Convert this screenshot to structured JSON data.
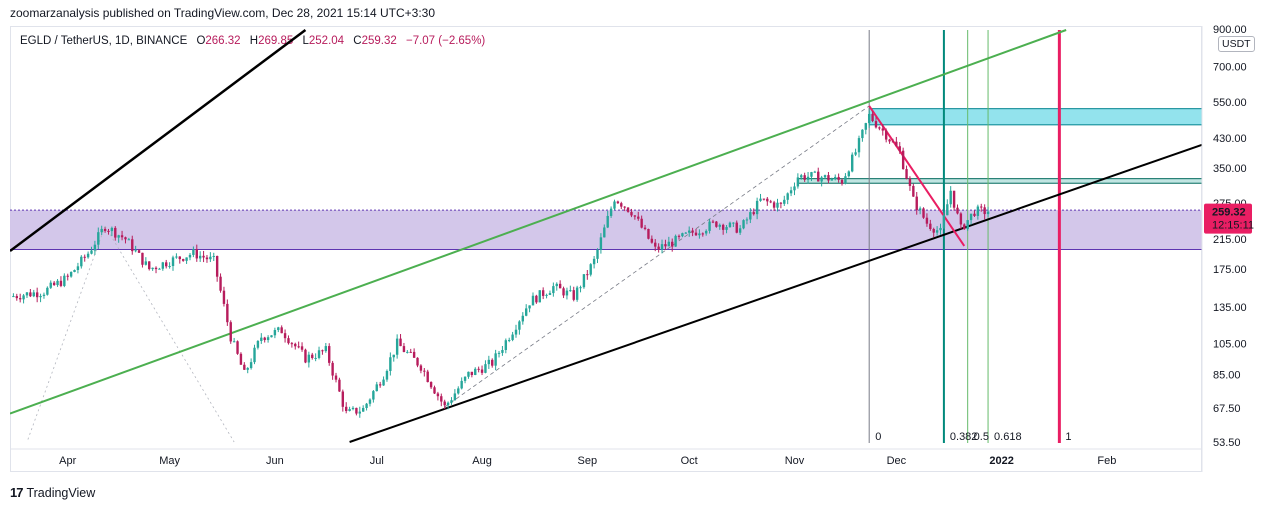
{
  "publish_line": "zoomarzanalysis published on TradingView.com, Dec 28, 2021 15:14 UTC+3:30",
  "legend": {
    "symbol": "EGLD / TetherUS, 1D, BINANCE",
    "open_label": "O",
    "open": "266.32",
    "high_label": "H",
    "high": "269.85",
    "low_label": "L",
    "low": "252.04",
    "close_label": "C",
    "close": "259.32",
    "change": "−7.07 (−2.65%)"
  },
  "currency_badge": "USDT",
  "price_tag": {
    "price": "259.32",
    "countdown": "12:15:11",
    "color": "#e91e63"
  },
  "footer_logo": "TradingView",
  "footer_logo_mark": "17",
  "colors": {
    "up": "#26a69a",
    "down": "#b71c5c",
    "channel_black": "#000000",
    "channel_green": "#4caf50",
    "zone_purple": "#d1c4e9",
    "zone_cyan": "#80deea",
    "fib_teal": "#00897b",
    "fib_red": "#e91e63",
    "trend_pink": "#e91e63"
  },
  "chart_data": {
    "type": "candlestick",
    "symbol": "EGLD / TetherUS",
    "interval": "1D",
    "exchange": "BINANCE",
    "y_scale": "log",
    "ylim": [
      53.5,
      900
    ],
    "y_ticks": [
      "900.00",
      "700.00",
      "550.00",
      "430.00",
      "350.00",
      "275.00",
      "215.00",
      "175.00",
      "135.00",
      "105.00",
      "85.00",
      "67.50",
      "53.50"
    ],
    "x_ticks": [
      "Apr",
      "May",
      "Jun",
      "Jul",
      "Aug",
      "Sep",
      "Oct",
      "Nov",
      "Dec",
      "2022",
      "Feb"
    ],
    "x_tick_dates": [
      "2021-04-01",
      "2021-05-01",
      "2021-06-01",
      "2021-07-01",
      "2021-08-01",
      "2021-09-01",
      "2021-10-01",
      "2021-11-01",
      "2021-12-01",
      "2022-01-01",
      "2022-02-01"
    ],
    "xlim": [
      "2021-03-15",
      "2022-03-01"
    ],
    "last_price": 259.32,
    "price_path": [
      [
        "2021-03-15",
        145
      ],
      [
        "2021-03-25",
        150
      ],
      [
        "2021-04-01",
        165
      ],
      [
        "2021-04-07",
        195
      ],
      [
        "2021-04-12",
        235
      ],
      [
        "2021-04-18",
        215
      ],
      [
        "2021-04-25",
        175
      ],
      [
        "2021-05-01",
        185
      ],
      [
        "2021-05-08",
        195
      ],
      [
        "2021-05-14",
        185
      ],
      [
        "2021-05-19",
        110
      ],
      [
        "2021-05-23",
        85
      ],
      [
        "2021-05-28",
        110
      ],
      [
        "2021-06-03",
        115
      ],
      [
        "2021-06-10",
        95
      ],
      [
        "2021-06-16",
        100
      ],
      [
        "2021-06-22",
        65
      ],
      [
        "2021-06-27",
        67
      ],
      [
        "2021-07-03",
        85
      ],
      [
        "2021-07-07",
        105
      ],
      [
        "2021-07-14",
        90
      ],
      [
        "2021-07-21",
        68
      ],
      [
        "2021-07-28",
        85
      ],
      [
        "2021-08-04",
        92
      ],
      [
        "2021-08-10",
        115
      ],
      [
        "2021-08-15",
        140
      ],
      [
        "2021-08-22",
        155
      ],
      [
        "2021-08-28",
        145
      ],
      [
        "2021-09-03",
        185
      ],
      [
        "2021-09-09",
        285
      ],
      [
        "2021-09-14",
        260
      ],
      [
        "2021-09-21",
        200
      ],
      [
        "2021-09-26",
        210
      ],
      [
        "2021-10-02",
        225
      ],
      [
        "2021-10-09",
        240
      ],
      [
        "2021-10-16",
        230
      ],
      [
        "2021-10-22",
        280
      ],
      [
        "2021-10-28",
        270
      ],
      [
        "2021-11-02",
        330
      ],
      [
        "2021-11-08",
        330
      ],
      [
        "2021-11-15",
        320
      ],
      [
        "2021-11-19",
        390
      ],
      [
        "2021-11-23",
        500
      ],
      [
        "2021-11-28",
        440
      ],
      [
        "2021-12-02",
        390
      ],
      [
        "2021-12-06",
        280
      ],
      [
        "2021-12-10",
        240
      ],
      [
        "2021-12-14",
        225
      ],
      [
        "2021-12-17",
        300
      ],
      [
        "2021-12-20",
        230
      ],
      [
        "2021-12-24",
        260
      ],
      [
        "2021-12-28",
        259.32
      ]
    ],
    "annotations": {
      "zones": [
        {
          "name": "support-zone",
          "from": 200,
          "to": 262
        },
        {
          "name": "resistance-zone-high",
          "from": 470,
          "to": 525,
          "start": "2021-11-23",
          "end": "2022-03-01"
        },
        {
          "name": "resistance-zone-mid",
          "from": 315,
          "to": 325,
          "start": "2021-11-02",
          "end": "2022-03-01"
        }
      ],
      "channel_lines": [
        {
          "name": "black-upper",
          "from": [
            "2021-03-15",
            198
          ],
          "to": [
            "2021-06-10",
            900
          ]
        },
        {
          "name": "black-lower",
          "from": [
            "2021-06-23",
            53.5
          ],
          "to": [
            "2022-03-01",
            410
          ]
        },
        {
          "name": "green",
          "from": [
            "2021-03-15",
            65
          ],
          "to": [
            "2022-01-20",
            900
          ]
        },
        {
          "name": "trend-pink",
          "from": [
            "2021-11-23",
            535
          ],
          "to": [
            "2021-12-21",
            205
          ]
        }
      ],
      "fib_time_lines": [
        {
          "date": "2021-11-23",
          "label": "0"
        },
        {
          "date": "2021-12-15",
          "label": "0.382"
        },
        {
          "date": "2021-12-22",
          "label": "0.5"
        },
        {
          "date": "2021-12-28",
          "label": "0.618"
        },
        {
          "date": "2022-01-18",
          "label": "1"
        }
      ]
    }
  }
}
